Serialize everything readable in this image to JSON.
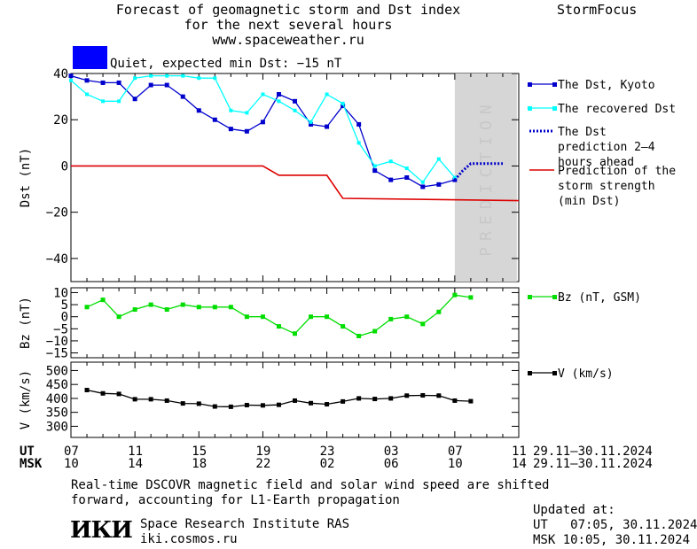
{
  "header": {
    "title_line1": "Forecast of geomagnetic storm and Dst index",
    "title_line2": "for the next several hours",
    "url": "www.spaceweather.ru",
    "brand": "StormFocus"
  },
  "status": {
    "label": "Quiet, expected min Dst: −15 nT",
    "color": "#0000ff"
  },
  "prediction_label": "PREDICTION",
  "time_axis": {
    "ut_label": "UT",
    "msk_label": "MSK",
    "ut_ticks": [
      "07",
      "11",
      "15",
      "19",
      "23",
      "03",
      "07",
      "11"
    ],
    "msk_ticks": [
      "10",
      "14",
      "18",
      "22",
      "02",
      "06",
      "10",
      "14"
    ],
    "range_ut": "29.11–30.11.2024",
    "range_msk": "29.11–30.11.2024"
  },
  "chart_data": [
    {
      "type": "line",
      "ylabel": "Dst (nT)",
      "xlim": [
        7,
        35
      ],
      "ylim": [
        -50,
        40
      ],
      "yticks": [
        40,
        20,
        0,
        -20,
        -40
      ],
      "prediction_start": 31,
      "series": [
        {
          "name": "The Dst, Kyoto",
          "color": "#0000cc",
          "x": [
            7,
            8,
            9,
            10,
            11,
            12,
            13,
            14,
            15,
            16,
            17,
            18,
            19,
            20,
            21,
            22,
            23,
            24,
            25,
            26,
            27,
            28,
            29,
            30,
            31
          ],
          "y": [
            39,
            37,
            36,
            36,
            29,
            35,
            35,
            30,
            24,
            20,
            16,
            15,
            19,
            31,
            28,
            18,
            17,
            26,
            18,
            -2,
            -6,
            -5,
            -9,
            -8,
            -6
          ]
        },
        {
          "name": "The recovered Dst",
          "color": "#00ffff",
          "x": [
            7,
            8,
            9,
            10,
            11,
            12,
            13,
            14,
            15,
            16,
            17,
            18,
            19,
            20,
            21,
            22,
            23,
            24,
            25,
            26,
            27,
            28,
            29,
            30,
            31
          ],
          "y": [
            37,
            31,
            28,
            28,
            38,
            39,
            39,
            39,
            38,
            38,
            24,
            23,
            31,
            28,
            24,
            19,
            31,
            27,
            10,
            0,
            2,
            -1,
            -7,
            3,
            -5
          ]
        },
        {
          "name": "The Dst prediction 2–4 hours ahead",
          "color": "#0000cc",
          "x": [
            31,
            31.5,
            32,
            32.5,
            33,
            34
          ],
          "y": [
            -6,
            -2,
            1,
            1,
            1,
            1
          ]
        },
        {
          "name": "Prediction of the storm strength (min Dst)",
          "color": "#dd0000",
          "x": [
            7,
            19,
            20,
            23,
            24,
            35
          ],
          "y": [
            0,
            0,
            -4,
            -4,
            -14,
            -15
          ]
        }
      ]
    },
    {
      "type": "line",
      "ylabel": "Bz (nT)",
      "xlim": [
        7,
        35
      ],
      "ylim": [
        -17,
        12
      ],
      "yticks": [
        10,
        5,
        0,
        -5,
        -10,
        -15
      ],
      "ytick_labels": [
        "10",
        "5",
        "0",
        "−5",
        "−10",
        "−15"
      ],
      "series": [
        {
          "name": "Bz (nT, GSM)",
          "color": "#00dd00",
          "x": [
            8,
            9,
            10,
            11,
            12,
            13,
            14,
            15,
            16,
            17,
            18,
            19,
            20,
            21,
            22,
            23,
            24,
            25,
            26,
            27,
            28,
            29,
            30,
            31,
            32
          ],
          "y": [
            4,
            7,
            0,
            3,
            5,
            3,
            5,
            4,
            4,
            4,
            0,
            0,
            -4,
            -7,
            0,
            0,
            -4,
            -8,
            -6,
            -1,
            0,
            -3,
            2,
            9,
            8
          ]
        }
      ]
    },
    {
      "type": "line",
      "ylabel": "V (km/s)",
      "xlim": [
        7,
        35
      ],
      "ylim": [
        260,
        530
      ],
      "yticks": [
        500,
        450,
        400,
        350,
        300
      ],
      "series": [
        {
          "name": "V (km/s)",
          "color": "#000000",
          "x": [
            8,
            9,
            10,
            11,
            12,
            13,
            14,
            15,
            16,
            17,
            18,
            19,
            20,
            21,
            22,
            23,
            24,
            25,
            26,
            27,
            28,
            29,
            30,
            31,
            32
          ],
          "y": [
            430,
            418,
            416,
            397,
            397,
            392,
            382,
            381,
            371,
            370,
            376,
            375,
            377,
            392,
            383,
            379,
            389,
            400,
            398,
            400,
            410,
            411,
            410,
            392,
            390
          ]
        }
      ]
    }
  ],
  "footer": {
    "note_line1": "Real-time DSCOVR magnetic field and solar wind speed are shifted",
    "note_line2": "forward, accounting for L1-Earth propagation",
    "logo": "ИКИ",
    "institute": "Space Research Institute RAS",
    "site": "iki.cosmos.ru",
    "updated_label": "Updated at:",
    "updated_ut": "UT   07:05, 30.11.2024",
    "updated_msk": "MSK 10:05, 30.11.2024"
  }
}
